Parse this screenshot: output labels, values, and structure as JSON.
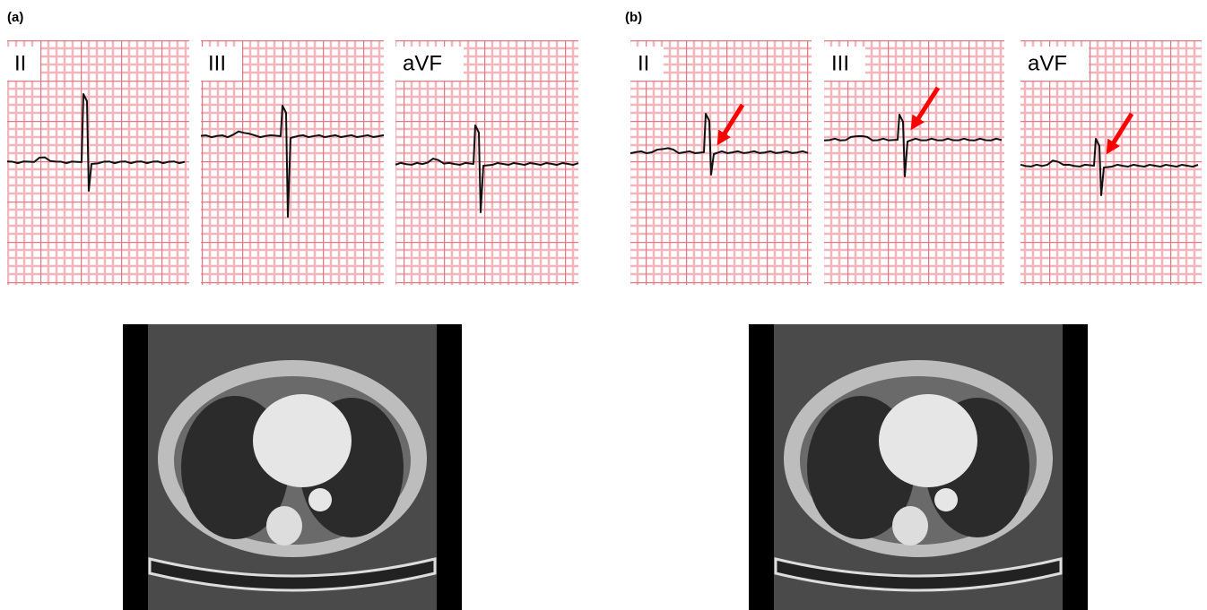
{
  "panels": [
    {
      "label": "(a)",
      "leads": [
        "II",
        "III",
        "aVF"
      ]
    },
    {
      "label": "(b)",
      "leads": [
        "II",
        "III",
        "aVF"
      ]
    }
  ]
}
